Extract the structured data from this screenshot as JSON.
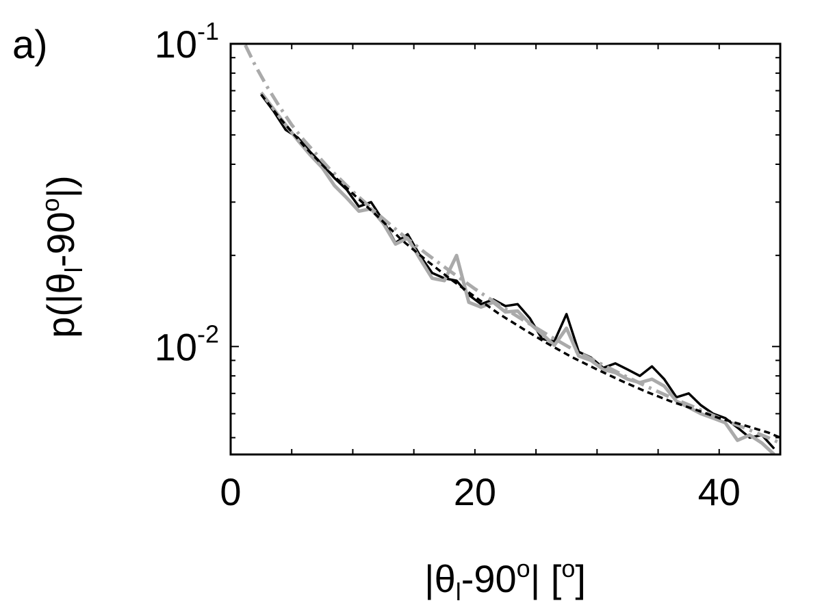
{
  "panel_label": "a)",
  "chart_data": {
    "type": "line",
    "title": "",
    "xlabel": {
      "abs_open": "|θ",
      "sub": "l",
      "minus": "-90",
      "sup": "o",
      "abs_close": "| [",
      "unit_sup": "o",
      "bracket_close": "]"
    },
    "ylabel": {
      "prefix": "p(|θ",
      "sub": "l",
      "minus": "-90",
      "sup": "o",
      "suffix": "|)"
    },
    "x_axis": {
      "lim": [
        0,
        45
      ],
      "ticks": [
        0,
        20,
        40
      ],
      "tick_labels": [
        "0",
        "20",
        "40"
      ]
    },
    "y_axis": {
      "scale": "log",
      "lim": [
        0.0044,
        0.1
      ],
      "ticks": [
        0.01,
        0.1
      ],
      "tick_labels": [
        {
          "base": "10",
          "exp": "-2"
        },
        {
          "base": "10",
          "exp": "-1"
        }
      ]
    },
    "grid": false,
    "legend": "none",
    "series": [
      {
        "style": "black-solid",
        "color": "#000000",
        "x": [
          2.5,
          3.5,
          4.5,
          5.5,
          6.5,
          7.5,
          8.5,
          9.5,
          10.5,
          11.5,
          12.5,
          13.5,
          14.5,
          15.5,
          16.5,
          17.5,
          18.5,
          19.5,
          20.5,
          21.5,
          22.5,
          23.5,
          24.5,
          25.5,
          26.5,
          27.5,
          28.5,
          29.5,
          30.5,
          31.5,
          32.5,
          33.5,
          34.5,
          35.5,
          36.5,
          37.5,
          38.5,
          39.5,
          40.5,
          41.5,
          42.5,
          43.5,
          44.5
        ],
        "y": [
          0.068,
          0.06,
          0.052,
          0.049,
          0.044,
          0.04,
          0.036,
          0.033,
          0.029,
          0.03,
          0.026,
          0.022,
          0.0235,
          0.02,
          0.0175,
          0.0168,
          0.0165,
          0.0148,
          0.0138,
          0.0143,
          0.0136,
          0.0138,
          0.0124,
          0.0106,
          0.0104,
          0.0128,
          0.0096,
          0.0092,
          0.0085,
          0.0088,
          0.0084,
          0.008,
          0.0086,
          0.0078,
          0.0068,
          0.007,
          0.0064,
          0.006,
          0.0058,
          0.0054,
          0.005,
          0.0051,
          0.0046
        ]
      },
      {
        "style": "gray-solid",
        "color": "#aaaaaa",
        "x": [
          2.5,
          3.5,
          4.5,
          5.5,
          6.5,
          7.5,
          8.5,
          9.5,
          10.5,
          11.5,
          12.5,
          13.5,
          14.5,
          15.5,
          16.5,
          17.5,
          18.5,
          19.5,
          20.5,
          21.5,
          22.5,
          23.5,
          24.5,
          25.5,
          26.5,
          27.5,
          28.5,
          29.5,
          30.5,
          31.5,
          32.5,
          33.5,
          34.5,
          35.5,
          36.5,
          37.5,
          38.5,
          39.5,
          40.5,
          41.5,
          42.5,
          43.5,
          44.5
        ],
        "y": [
          0.069,
          0.061,
          0.054,
          0.048,
          0.043,
          0.039,
          0.034,
          0.031,
          0.028,
          0.0285,
          0.0255,
          0.0218,
          0.0228,
          0.0195,
          0.0168,
          0.0165,
          0.02,
          0.014,
          0.0135,
          0.014,
          0.013,
          0.0131,
          0.0119,
          0.011,
          0.0101,
          0.0115,
          0.0093,
          0.009,
          0.0084,
          0.0082,
          0.0078,
          0.0076,
          0.0078,
          0.0074,
          0.0066,
          0.0063,
          0.006,
          0.0058,
          0.0056,
          0.0049,
          0.0051,
          0.0048,
          0.0044
        ]
      },
      {
        "style": "gray-dashdot",
        "color": "#aaaaaa",
        "x": [
          1.2,
          2,
          3,
          4,
          5,
          6,
          8,
          10,
          12,
          14,
          16,
          18,
          20,
          22,
          24,
          26,
          28,
          30,
          32,
          34,
          36,
          38,
          40,
          42,
          44,
          45
        ],
        "y": [
          0.099,
          0.085,
          0.072,
          0.062,
          0.054,
          0.048,
          0.039,
          0.0325,
          0.0275,
          0.0235,
          0.0203,
          0.0177,
          0.0155,
          0.0137,
          0.0122,
          0.0109,
          0.0098,
          0.0089,
          0.0081,
          0.0074,
          0.0068,
          0.0063,
          0.0058,
          0.0054,
          0.005,
          0.0048
        ]
      },
      {
        "style": "black-dashed",
        "color": "#000000",
        "x": [
          2.5,
          4,
          6,
          8,
          10,
          12,
          14,
          16,
          18,
          20,
          22,
          24,
          26,
          28,
          30,
          32,
          34,
          36,
          38,
          40,
          42,
          44,
          45
        ],
        "y": [
          0.068,
          0.057,
          0.046,
          0.038,
          0.032,
          0.027,
          0.0225,
          0.0193,
          0.0167,
          0.0146,
          0.0128,
          0.0114,
          0.0102,
          0.0092,
          0.0084,
          0.0077,
          0.0071,
          0.0066,
          0.0062,
          0.0058,
          0.0055,
          0.0052,
          0.005
        ]
      }
    ]
  }
}
